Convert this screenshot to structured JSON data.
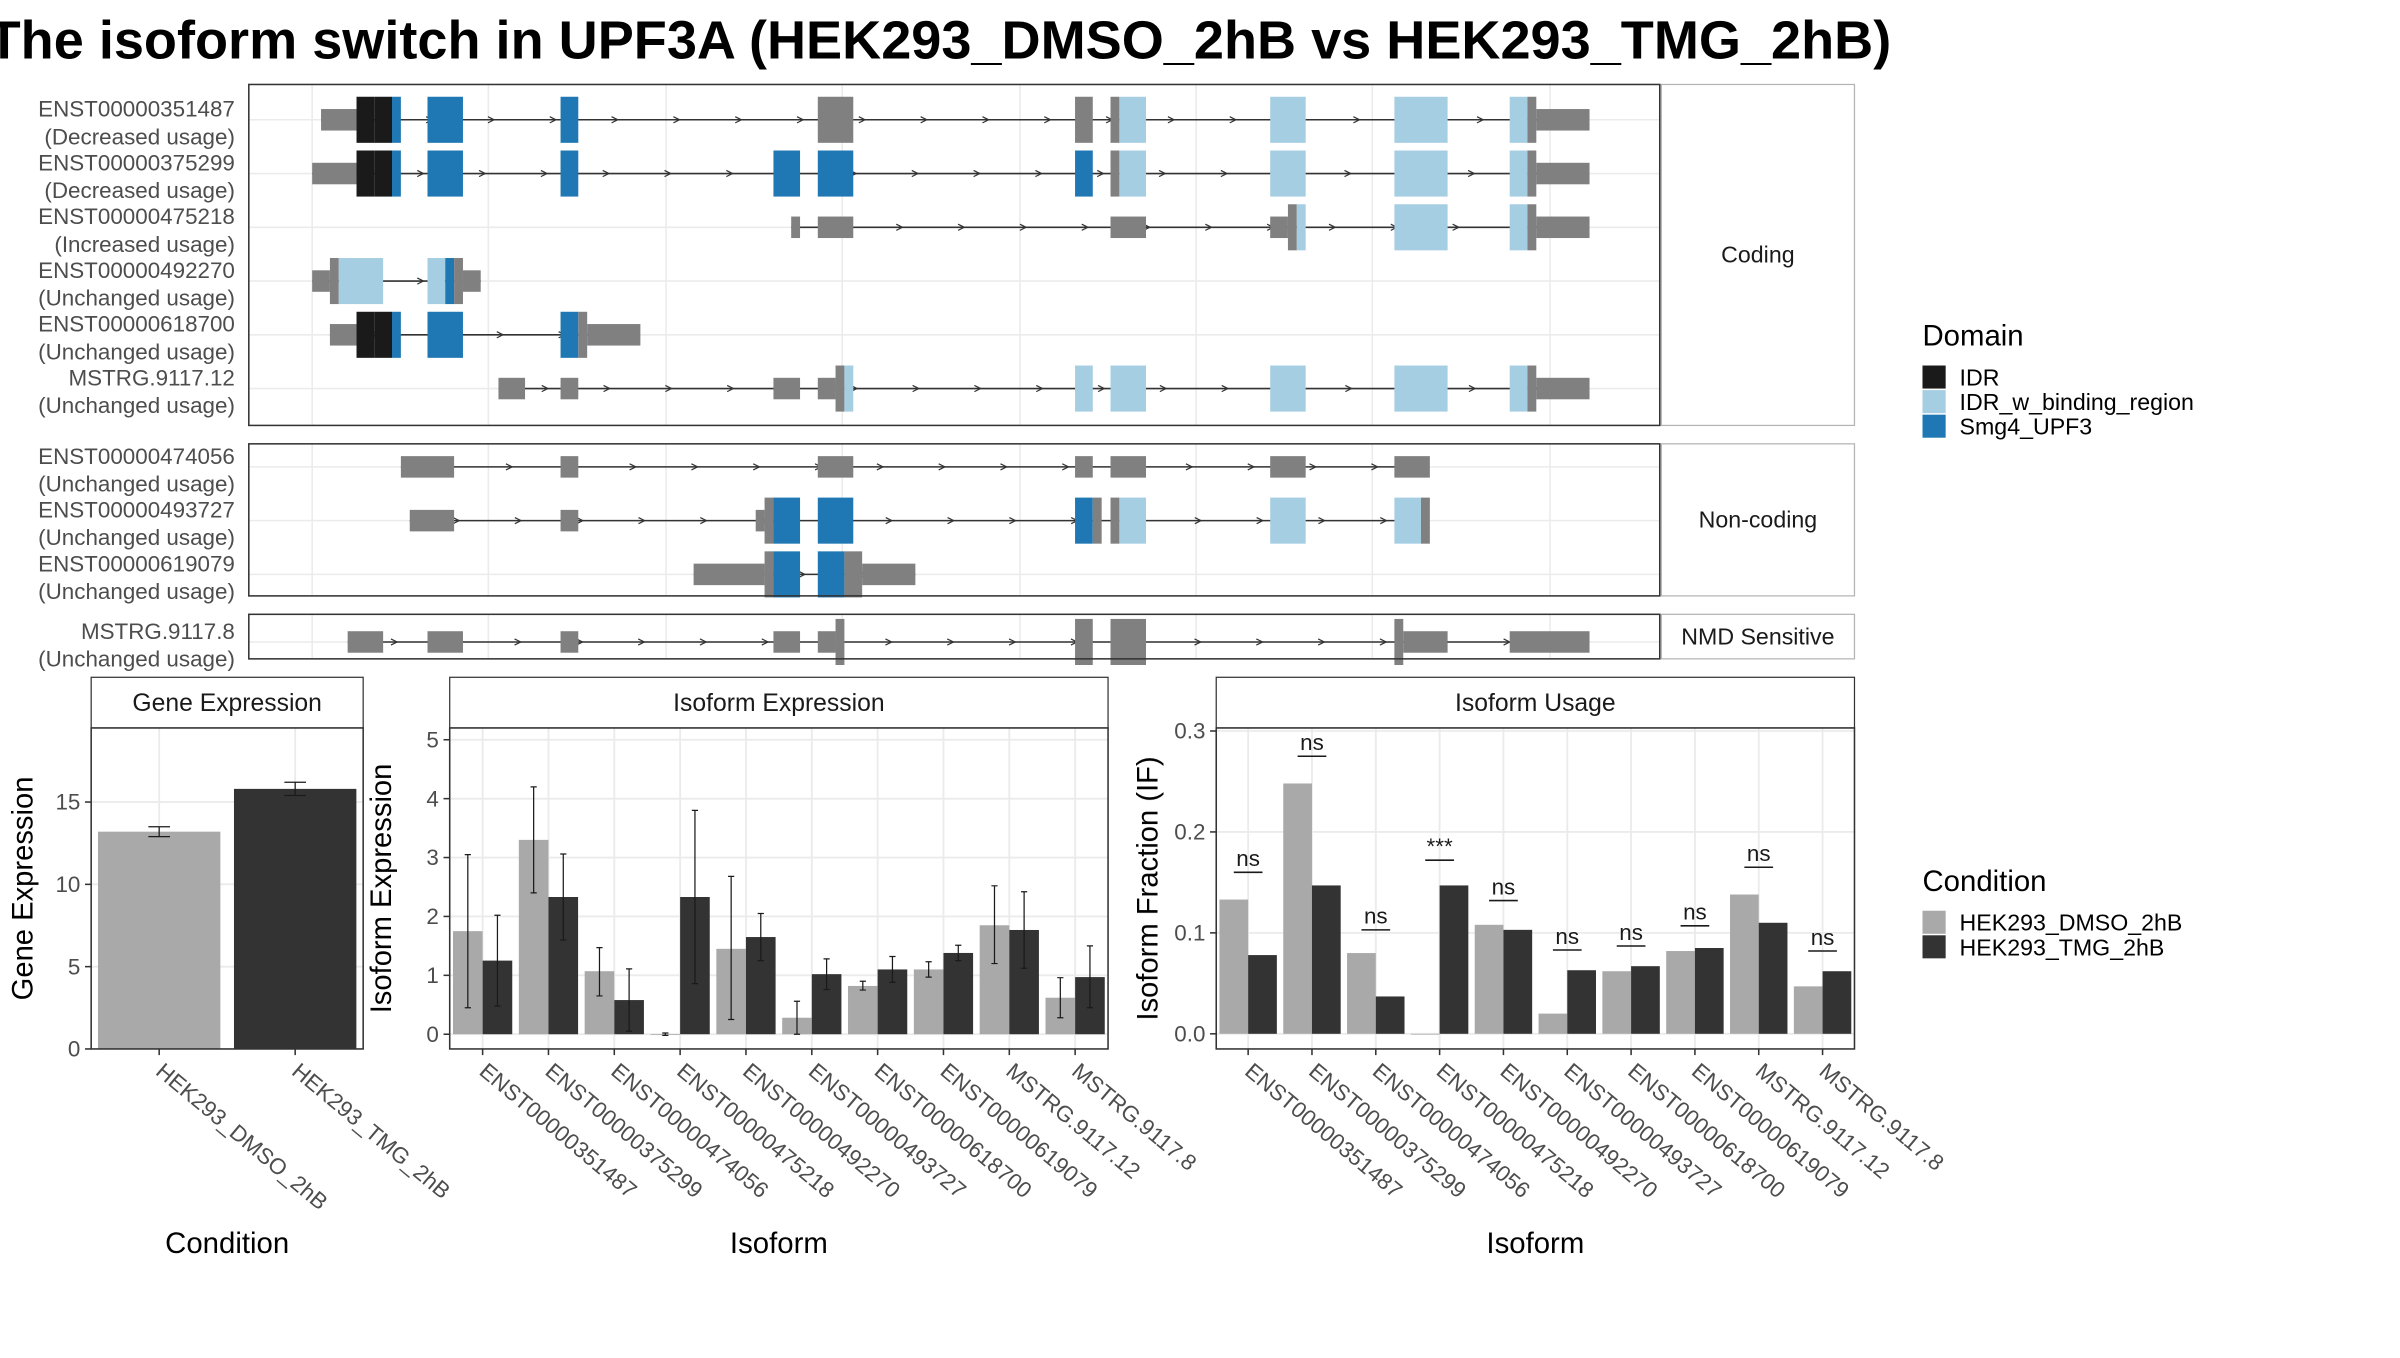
{
  "title": "The isoform switch in UPF3A (HEK293_DMSO_2hB vs HEK293_TMG_2hB)",
  "colors": {
    "IDR": "#1a1a1a",
    "IDR_w_binding_region": "#a6cee3",
    "Smg4_UPF3": "#1f78b4",
    "exon": "#808080",
    "HEK293_DMSO_2hB": "#a9a9a9",
    "HEK293_TMG_2hB": "#333333"
  },
  "domain_legend": {
    "title": "Domain",
    "entries": [
      {
        "label": "IDR",
        "color_key": "IDR"
      },
      {
        "label": "IDR_w_binding_region",
        "color_key": "IDR_w_binding_region"
      },
      {
        "label": "Smg4_UPF3",
        "color_key": "Smg4_UPF3"
      }
    ]
  },
  "condition_legend": {
    "title": "Condition",
    "entries": [
      {
        "label": "HEK293_DMSO_2hB",
        "color_key": "HEK293_DMSO_2hB"
      },
      {
        "label": "HEK293_TMG_2hB",
        "color_key": "HEK293_TMG_2hB"
      }
    ]
  },
  "transcript_panels": [
    {
      "label": "Coding",
      "transcripts": [
        {
          "id": "ENST00000351487",
          "usage": "(Decreased usage)",
          "span": [
            1,
            140
          ],
          "exons": [
            [
              1,
              5,
              "u"
            ],
            [
              5,
              7,
              "r",
              "IDR"
            ],
            [
              7,
              9,
              "r",
              "IDR"
            ],
            [
              9,
              10,
              "r",
              "Smg4_UPF3"
            ],
            [
              13,
              17,
              "r",
              "Smg4_UPF3"
            ],
            [
              28,
              30,
              "r",
              "Smg4_UPF3"
            ],
            [
              57,
              61,
              "r"
            ],
            [
              86,
              88,
              "r"
            ],
            [
              90,
              91,
              "r"
            ],
            [
              91,
              94,
              "r",
              "IDR_w_binding_region"
            ],
            [
              108,
              112,
              "r",
              "IDR_w_binding_region"
            ],
            [
              122,
              128,
              "r",
              "IDR_w_binding_region"
            ],
            [
              135,
              137,
              "r",
              "IDR_w_binding_region"
            ],
            [
              137,
              138,
              "r"
            ],
            [
              138,
              144,
              "u"
            ]
          ]
        },
        {
          "id": "ENST00000375299",
          "usage": "(Decreased usage)",
          "span": [
            0,
            140
          ],
          "exons": [
            [
              0,
              5,
              "u"
            ],
            [
              5,
              7,
              "r",
              "IDR"
            ],
            [
              7,
              9,
              "r",
              "IDR"
            ],
            [
              9,
              10,
              "r",
              "Smg4_UPF3"
            ],
            [
              13,
              17,
              "r",
              "Smg4_UPF3"
            ],
            [
              28,
              30,
              "r",
              "Smg4_UPF3"
            ],
            [
              52,
              55,
              "r",
              "Smg4_UPF3"
            ],
            [
              57,
              61,
              "r",
              "Smg4_UPF3"
            ],
            [
              86,
              88,
              "r",
              "Smg4_UPF3"
            ],
            [
              90,
              91,
              "r"
            ],
            [
              91,
              94,
              "r",
              "IDR_w_binding_region"
            ],
            [
              108,
              112,
              "r",
              "IDR_w_binding_region"
            ],
            [
              122,
              128,
              "r",
              "IDR_w_binding_region"
            ],
            [
              135,
              137,
              "r",
              "IDR_w_binding_region"
            ],
            [
              137,
              138,
              "r"
            ],
            [
              138,
              144,
              "u"
            ]
          ]
        },
        {
          "id": "ENST00000475218",
          "usage": "(Increased usage)",
          "span": [
            54,
            140
          ],
          "exons": [
            [
              54,
              55,
              "u"
            ],
            [
              57,
              61,
              "u"
            ],
            [
              90,
              94,
              "u"
            ],
            [
              108,
              110,
              "u"
            ],
            [
              110,
              111,
              "r"
            ],
            [
              111,
              112,
              "r",
              "IDR_w_binding_region"
            ],
            [
              122,
              128,
              "r",
              "IDR_w_binding_region"
            ],
            [
              135,
              137,
              "r",
              "IDR_w_binding_region"
            ],
            [
              137,
              138,
              "r"
            ],
            [
              138,
              144,
              "u"
            ]
          ]
        },
        {
          "id": "ENST00000492270",
          "usage": "(Unchanged usage)",
          "span": [
            0,
            19
          ],
          "exons": [
            [
              0,
              2,
              "u"
            ],
            [
              2,
              3,
              "r"
            ],
            [
              3,
              8,
              "r",
              "IDR_w_binding_region"
            ],
            [
              13,
              15,
              "r",
              "IDR_w_binding_region"
            ],
            [
              15,
              16,
              "r",
              "Smg4_UPF3"
            ],
            [
              16,
              17,
              "r"
            ],
            [
              17,
              19,
              "u"
            ]
          ]
        },
        {
          "id": "ENST00000618700",
          "usage": "(Unchanged usage)",
          "span": [
            2,
            35
          ],
          "exons": [
            [
              2,
              5,
              "u"
            ],
            [
              5,
              7,
              "r",
              "IDR"
            ],
            [
              7,
              9,
              "r",
              "IDR"
            ],
            [
              9,
              10,
              "r",
              "Smg4_UPF3"
            ],
            [
              13,
              17,
              "r",
              "Smg4_UPF3"
            ],
            [
              28,
              30,
              "r",
              "Smg4_UPF3"
            ],
            [
              30,
              31,
              "r"
            ],
            [
              31,
              37,
              "u"
            ]
          ]
        },
        {
          "id": "MSTRG.9117.12",
          "usage": "(Unchanged usage)",
          "span": [
            21,
            140
          ],
          "exons": [
            [
              21,
              24,
              "u"
            ],
            [
              28,
              30,
              "u"
            ],
            [
              52,
              55,
              "u"
            ],
            [
              57,
              59,
              "u"
            ],
            [
              59,
              60,
              "r"
            ],
            [
              60,
              61,
              "r",
              "IDR_w_binding_region"
            ],
            [
              86,
              88,
              "r",
              "IDR_w_binding_region"
            ],
            [
              90,
              94,
              "r",
              "IDR_w_binding_region"
            ],
            [
              108,
              112,
              "r",
              "IDR_w_binding_region"
            ],
            [
              122,
              128,
              "r",
              "IDR_w_binding_region"
            ],
            [
              135,
              137,
              "r",
              "IDR_w_binding_region"
            ],
            [
              137,
              138,
              "r"
            ],
            [
              138,
              144,
              "u"
            ]
          ]
        }
      ]
    },
    {
      "label": "Non-coding",
      "transcripts": [
        {
          "id": "ENST00000474056",
          "usage": "(Unchanged usage)",
          "span": [
            10,
            125
          ],
          "exons": [
            [
              10,
              16,
              "u"
            ],
            [
              28,
              30,
              "u"
            ],
            [
              57,
              61,
              "u"
            ],
            [
              86,
              88,
              "u"
            ],
            [
              90,
              94,
              "u"
            ],
            [
              108,
              112,
              "u"
            ],
            [
              122,
              126,
              "u"
            ]
          ]
        },
        {
          "id": "ENST00000493727",
          "usage": "(Unchanged usage)",
          "span": [
            11,
            125
          ],
          "exons": [
            [
              11,
              16,
              "u"
            ],
            [
              28,
              30,
              "u"
            ],
            [
              50,
              51,
              "u"
            ],
            [
              51,
              52,
              "r"
            ],
            [
              52,
              55,
              "r",
              "Smg4_UPF3"
            ],
            [
              57,
              61,
              "r",
              "Smg4_UPF3"
            ],
            [
              86,
              88,
              "r",
              "Smg4_UPF3"
            ],
            [
              88,
              89,
              "r"
            ],
            [
              90,
              91,
              "r"
            ],
            [
              91,
              94,
              "r",
              "IDR_w_binding_region"
            ],
            [
              108,
              112,
              "r",
              "IDR_w_binding_region"
            ],
            [
              122,
              125,
              "r",
              "IDR_w_binding_region"
            ],
            [
              125,
              126,
              "r"
            ]
          ]
        },
        {
          "id": "ENST00000619079",
          "usage": "(Unchanged usage)",
          "span": [
            43,
            68
          ],
          "exons": [
            [
              43,
              51,
              "u"
            ],
            [
              51,
              52,
              "r"
            ],
            [
              52,
              55,
              "r",
              "Smg4_UPF3"
            ],
            [
              57,
              60,
              "r",
              "Smg4_UPF3"
            ],
            [
              60,
              62,
              "r"
            ],
            [
              62,
              68,
              "u"
            ]
          ]
        }
      ]
    },
    {
      "label": "NMD Sensitive",
      "transcripts": [
        {
          "id": "MSTRG.9117.8",
          "usage": "(Unchanged usage)",
          "span": [
            4,
            140
          ],
          "exons": [
            [
              4,
              8,
              "u"
            ],
            [
              13,
              17,
              "u"
            ],
            [
              28,
              30,
              "u"
            ],
            [
              52,
              55,
              "u"
            ],
            [
              57,
              59,
              "u"
            ],
            [
              59,
              60,
              "r"
            ],
            [
              86,
              88,
              "r"
            ],
            [
              90,
              94,
              "r"
            ],
            [
              122,
              123,
              "r"
            ],
            [
              123,
              128,
              "u"
            ],
            [
              135,
              144,
              "u"
            ]
          ]
        }
      ]
    }
  ],
  "chart_data": [
    {
      "type": "bar",
      "title": "Gene Expression",
      "xlabel": "Condition",
      "ylabel": "Gene Expression",
      "ylim": [
        0,
        19.5
      ],
      "yticks": [
        0,
        5,
        10,
        15
      ],
      "categories": [
        "HEK293_DMSO_2hB",
        "HEK293_TMG_2hB"
      ],
      "values": [
        13.2,
        15.8
      ],
      "errors": [
        [
          12.9,
          13.5
        ],
        [
          15.4,
          16.2
        ]
      ]
    },
    {
      "type": "bar",
      "title": "Isoform Expression",
      "xlabel": "Isoform",
      "ylabel": "Isoform Expression",
      "ylim": [
        -0.25,
        5.2
      ],
      "yticks": [
        0,
        1,
        2,
        3,
        4,
        5
      ],
      "categories": [
        "ENST00000351487",
        "ENST00000375299",
        "ENST00000474056",
        "ENST00000475218",
        "ENST00000492270",
        "ENST00000493727",
        "ENST00000618700",
        "ENST00000619079",
        "MSTRG.9117.12",
        "MSTRG.9117.8"
      ],
      "series": [
        {
          "name": "HEK293_DMSO_2hB",
          "values": [
            1.75,
            3.3,
            1.07,
            0.0,
            1.45,
            0.28,
            0.82,
            1.1,
            1.85,
            0.62
          ],
          "errors": [
            [
              0.45,
              3.05
            ],
            [
              2.4,
              4.2
            ],
            [
              0.65,
              1.47
            ],
            [
              -0.02,
              0.02
            ],
            [
              0.25,
              2.68
            ],
            [
              0.0,
              0.56
            ],
            [
              0.75,
              0.9
            ],
            [
              0.97,
              1.23
            ],
            [
              1.2,
              2.52
            ],
            [
              0.28,
              0.96
            ]
          ]
        },
        {
          "name": "HEK293_TMG_2hB",
          "values": [
            1.25,
            2.33,
            0.58,
            2.33,
            1.65,
            1.02,
            1.1,
            1.38,
            1.77,
            0.97
          ],
          "errors": [
            [
              0.48,
              2.02
            ],
            [
              1.6,
              3.06
            ],
            [
              0.05,
              1.11
            ],
            [
              0.86,
              3.8
            ],
            [
              1.25,
              2.05
            ],
            [
              0.76,
              1.28
            ],
            [
              0.88,
              1.32
            ],
            [
              1.25,
              1.51
            ],
            [
              1.12,
              2.42
            ],
            [
              0.45,
              1.5
            ]
          ]
        }
      ]
    },
    {
      "type": "bar",
      "title": "Isoform Usage",
      "xlabel": "Isoform",
      "ylabel": "Isoform Fraction (IF)",
      "ylim": [
        -0.015,
        0.303
      ],
      "yticks": [
        0.0,
        0.1,
        0.2,
        0.3
      ],
      "categories": [
        "ENST00000351487",
        "ENST00000375299",
        "ENST00000474056",
        "ENST00000475218",
        "ENST00000492270",
        "ENST00000493727",
        "ENST00000618700",
        "ENST00000619079",
        "MSTRG.9117.12",
        "MSTRG.9117.8"
      ],
      "series": [
        {
          "name": "HEK293_DMSO_2hB",
          "values": [
            0.133,
            0.248,
            0.08,
            0.0,
            0.108,
            0.02,
            0.062,
            0.082,
            0.138,
            0.047
          ]
        },
        {
          "name": "HEK293_TMG_2hB",
          "values": [
            0.078,
            0.147,
            0.037,
            0.147,
            0.103,
            0.063,
            0.067,
            0.085,
            0.11,
            0.062
          ]
        }
      ],
      "significance": [
        "ns",
        "ns",
        "ns",
        "***",
        "ns",
        "ns",
        "ns",
        "ns",
        "ns",
        "ns"
      ],
      "sig_levels": [
        0.16,
        0.275,
        0.103,
        0.172,
        0.132,
        0.083,
        0.087,
        0.107,
        0.165,
        0.082
      ]
    }
  ]
}
